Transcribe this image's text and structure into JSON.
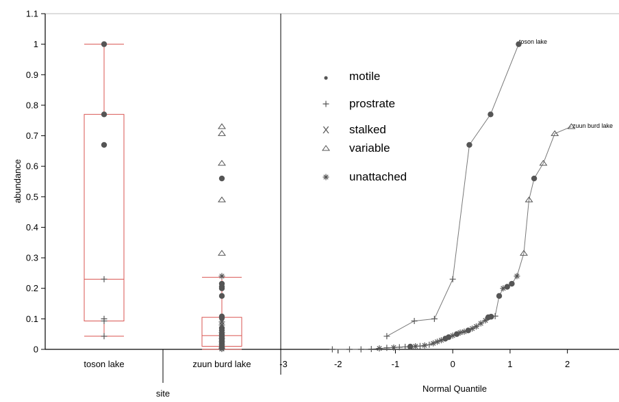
{
  "chart_data": {
    "type": "scatter",
    "y_axis": {
      "label": "abundance",
      "range": [
        0,
        1.1
      ],
      "ticks": [
        "0",
        "0.1",
        "0.2",
        "0.3",
        "0.4",
        "0.5",
        "0.6",
        "0.7",
        "0.8",
        "0.9",
        "1",
        "1.1"
      ]
    },
    "left_panel": {
      "xlabel": "site",
      "categories": [
        "toson lake",
        "zuun burd lake"
      ],
      "boxplots": [
        {
          "site": "toson lake",
          "whisker_low": 0.043,
          "q1": 0.093,
          "median": 0.23,
          "q3": 0.77,
          "whisker_high": 1.0
        },
        {
          "site": "zuun burd lake",
          "whisker_low": 0.0,
          "q1": 0.01,
          "median": 0.045,
          "q3": 0.105,
          "whisker_high": 0.236
        }
      ],
      "points": [
        {
          "site": "toson lake",
          "group": "motile",
          "y": 1.0
        },
        {
          "site": "toson lake",
          "group": "motile",
          "y": 0.77
        },
        {
          "site": "toson lake",
          "group": "motile",
          "y": 0.67
        },
        {
          "site": "toson lake",
          "group": "prostrate",
          "y": 0.23
        },
        {
          "site": "toson lake",
          "group": "prostrate",
          "y": 0.1
        },
        {
          "site": "toson lake",
          "group": "prostrate",
          "y": 0.093
        },
        {
          "site": "toson lake",
          "group": "prostrate",
          "y": 0.043
        },
        {
          "site": "zuun burd lake",
          "group": "variable",
          "y": 0.73
        },
        {
          "site": "zuun burd lake",
          "group": "variable",
          "y": 0.707
        },
        {
          "site": "zuun burd lake",
          "group": "variable",
          "y": 0.61
        },
        {
          "site": "zuun burd lake",
          "group": "variable",
          "y": 0.49
        },
        {
          "site": "zuun burd lake",
          "group": "variable",
          "y": 0.315
        },
        {
          "site": "zuun burd lake",
          "group": "motile",
          "y": 0.56
        },
        {
          "site": "zuun burd lake",
          "group": "unattached",
          "y": 0.24
        },
        {
          "site": "zuun burd lake",
          "group": "motile",
          "y": 0.215
        },
        {
          "site": "zuun burd lake",
          "group": "motile",
          "y": 0.205
        },
        {
          "site": "zuun burd lake",
          "group": "motile",
          "y": 0.2
        },
        {
          "site": "zuun burd lake",
          "group": "motile",
          "y": 0.175
        },
        {
          "site": "zuun burd lake",
          "group": "motile",
          "y": 0.108
        },
        {
          "site": "zuun burd lake",
          "group": "motile",
          "y": 0.103
        },
        {
          "site": "zuun burd lake",
          "group": "unattached",
          "y": 0.09
        },
        {
          "site": "zuun burd lake",
          "group": "unattached",
          "y": 0.08
        },
        {
          "site": "zuun burd lake",
          "group": "motile",
          "y": 0.07
        },
        {
          "site": "zuun burd lake",
          "group": "motile",
          "y": 0.062
        },
        {
          "site": "zuun burd lake",
          "group": "unattached",
          "y": 0.055
        },
        {
          "site": "zuun burd lake",
          "group": "motile",
          "y": 0.05
        },
        {
          "site": "zuun burd lake",
          "group": "unattached",
          "y": 0.045
        },
        {
          "site": "zuun burd lake",
          "group": "motile",
          "y": 0.04
        },
        {
          "site": "zuun burd lake",
          "group": "unattached",
          "y": 0.035
        },
        {
          "site": "zuun burd lake",
          "group": "motile",
          "y": 0.03
        },
        {
          "site": "zuun burd lake",
          "group": "unattached",
          "y": 0.025
        },
        {
          "site": "zuun burd lake",
          "group": "motile",
          "y": 0.02
        },
        {
          "site": "zuun burd lake",
          "group": "unattached",
          "y": 0.015
        },
        {
          "site": "zuun burd lake",
          "group": "motile",
          "y": 0.01
        },
        {
          "site": "zuun burd lake",
          "group": "unattached",
          "y": 0.006
        },
        {
          "site": "zuun burd lake",
          "group": "unattached",
          "y": 0.003
        },
        {
          "site": "zuun burd lake",
          "group": "unattached",
          "y": 0.001
        }
      ]
    },
    "right_panel": {
      "xlabel": "Normal Quantile",
      "x_range": [
        -3,
        2.9
      ],
      "x_ticks": [
        "-3",
        "-2",
        "-1",
        "0",
        "1",
        "2"
      ],
      "legend": {
        "placement": "top-center",
        "entries": [
          {
            "group": "motile",
            "label": "motile"
          },
          {
            "group": "prostrate",
            "label": "prostrate"
          },
          {
            "group": "stalked",
            "label": "stalked"
          },
          {
            "group": "variable",
            "label": "variable"
          },
          {
            "group": "unattached",
            "label": "unattached"
          }
        ]
      },
      "series": [
        {
          "name": "toson lake",
          "points": [
            {
              "x": -1.15,
              "y": 0.043,
              "group": "prostrate"
            },
            {
              "x": -0.67,
              "y": 0.093,
              "group": "prostrate"
            },
            {
              "x": -0.32,
              "y": 0.1,
              "group": "prostrate"
            },
            {
              "x": 0.0,
              "y": 0.23,
              "group": "prostrate"
            },
            {
              "x": 0.29,
              "y": 0.67,
              "group": "motile"
            },
            {
              "x": 0.66,
              "y": 0.77,
              "group": "motile"
            },
            {
              "x": 1.15,
              "y": 1.0,
              "group": "motile"
            }
          ]
        },
        {
          "name": "zuun burd lake",
          "points": [
            {
              "x": -2.1,
              "y": 0.0,
              "group": "prostrate"
            },
            {
              "x": -1.8,
              "y": 0.0,
              "group": "prostrate"
            },
            {
              "x": -1.6,
              "y": 0.0,
              "group": "prostrate"
            },
            {
              "x": -1.42,
              "y": 0.001,
              "group": "prostrate"
            },
            {
              "x": -1.28,
              "y": 0.003,
              "group": "unattached"
            },
            {
              "x": -1.15,
              "y": 0.005,
              "group": "prostrate"
            },
            {
              "x": -1.03,
              "y": 0.006,
              "group": "unattached"
            },
            {
              "x": -0.93,
              "y": 0.007,
              "group": "prostrate"
            },
            {
              "x": -0.83,
              "y": 0.008,
              "group": "prostrate"
            },
            {
              "x": -0.74,
              "y": 0.009,
              "group": "motile"
            },
            {
              "x": -0.65,
              "y": 0.01,
              "group": "unattached"
            },
            {
              "x": -0.57,
              "y": 0.011,
              "group": "prostrate"
            },
            {
              "x": -0.49,
              "y": 0.013,
              "group": "unattached"
            },
            {
              "x": -0.41,
              "y": 0.015,
              "group": "prostrate"
            },
            {
              "x": -0.34,
              "y": 0.02,
              "group": "unattached"
            },
            {
              "x": -0.27,
              "y": 0.025,
              "group": "unattached"
            },
            {
              "x": -0.2,
              "y": 0.03,
              "group": "unattached"
            },
            {
              "x": -0.13,
              "y": 0.035,
              "group": "motile"
            },
            {
              "x": -0.07,
              "y": 0.04,
              "group": "motile"
            },
            {
              "x": 0.0,
              "y": 0.045,
              "group": "unattached"
            },
            {
              "x": 0.07,
              "y": 0.05,
              "group": "motile"
            },
            {
              "x": 0.13,
              "y": 0.055,
              "group": "unattached"
            },
            {
              "x": 0.2,
              "y": 0.058,
              "group": "unattached"
            },
            {
              "x": 0.27,
              "y": 0.062,
              "group": "motile"
            },
            {
              "x": 0.34,
              "y": 0.068,
              "group": "unattached"
            },
            {
              "x": 0.41,
              "y": 0.075,
              "group": "unattached"
            },
            {
              "x": 0.49,
              "y": 0.085,
              "group": "unattached"
            },
            {
              "x": 0.57,
              "y": 0.095,
              "group": "unattached"
            },
            {
              "x": 0.62,
              "y": 0.105,
              "group": "motile"
            },
            {
              "x": 0.67,
              "y": 0.107,
              "group": "motile"
            },
            {
              "x": 0.74,
              "y": 0.109,
              "group": "prostrate"
            },
            {
              "x": 0.81,
              "y": 0.175,
              "group": "motile"
            },
            {
              "x": 0.88,
              "y": 0.2,
              "group": "unattached"
            },
            {
              "x": 0.95,
              "y": 0.205,
              "group": "motile"
            },
            {
              "x": 1.03,
              "y": 0.215,
              "group": "motile"
            },
            {
              "x": 1.12,
              "y": 0.24,
              "group": "unattached"
            },
            {
              "x": 1.24,
              "y": 0.315,
              "group": "variable"
            },
            {
              "x": 1.33,
              "y": 0.49,
              "group": "variable"
            },
            {
              "x": 1.42,
              "y": 0.56,
              "group": "motile"
            },
            {
              "x": 1.58,
              "y": 0.61,
              "group": "variable"
            },
            {
              "x": 1.78,
              "y": 0.707,
              "group": "variable"
            },
            {
              "x": 2.07,
              "y": 0.73,
              "group": "variable"
            }
          ]
        }
      ]
    }
  }
}
